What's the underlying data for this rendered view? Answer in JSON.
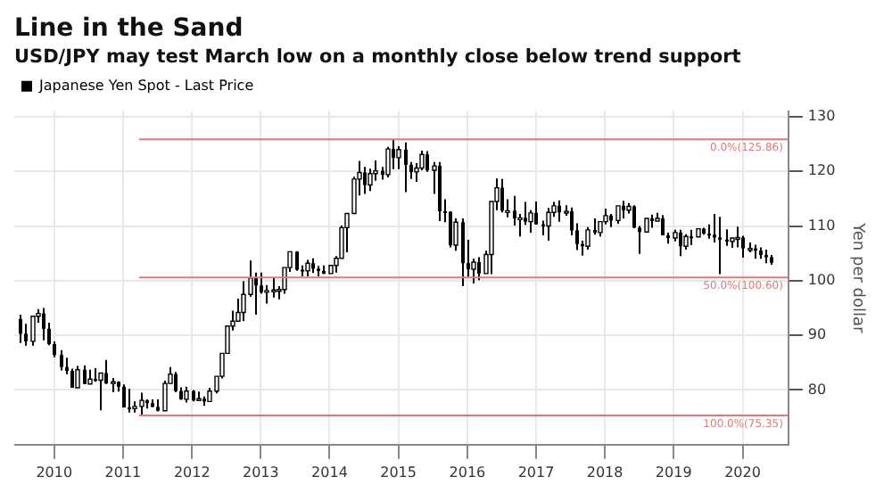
{
  "chart_data": {
    "type": "candlestick",
    "title": "Line in the Sand",
    "subtitle": "USD/JPY may test March low on a monthly close below trend support",
    "ylabel": "Yen per dollar",
    "legend": "top left",
    "grid": true,
    "xlim": [
      "2009-12",
      "2021-03"
    ],
    "xticks": [
      {
        "value": "2010-07",
        "label": "2010"
      },
      {
        "value": "2011-07",
        "label": "2011"
      },
      {
        "value": "2012-07",
        "label": "2012"
      },
      {
        "value": "2013-07",
        "label": "2013"
      },
      {
        "value": "2014-07",
        "label": "2014"
      },
      {
        "value": "2015-07",
        "label": "2015"
      },
      {
        "value": "2016-07",
        "label": "2016"
      },
      {
        "value": "2017-07",
        "label": "2017"
      },
      {
        "value": "2018-07",
        "label": "2018"
      },
      {
        "value": "2019-07",
        "label": "2019"
      },
      {
        "value": "2020-07",
        "label": "2020"
      }
    ],
    "ylim": [
      70,
      131
    ],
    "yticks": [
      80,
      90,
      100,
      110,
      120,
      130
    ],
    "ref_lines": [
      {
        "axis": "y",
        "value": 125.86,
        "label": "0.0%(125.86)",
        "color": "#e07a7a"
      },
      {
        "axis": "y",
        "value": 100.6,
        "label": "50.0%(100.60)",
        "color": "#e07a7a"
      },
      {
        "axis": "y",
        "value": 75.35,
        "label": "100.0%(75.35)",
        "color": "#e07a7a"
      }
    ],
    "x": [
      "2010-01",
      "2010-02",
      "2010-03",
      "2010-04",
      "2010-05",
      "2010-06",
      "2010-07",
      "2010-08",
      "2010-09",
      "2010-10",
      "2010-11",
      "2010-12",
      "2011-01",
      "2011-02",
      "2011-03",
      "2011-04",
      "2011-05",
      "2011-06",
      "2011-07",
      "2011-08",
      "2011-09",
      "2011-10",
      "2011-11",
      "2011-12",
      "2012-01",
      "2012-02",
      "2012-03",
      "2012-04",
      "2012-05",
      "2012-06",
      "2012-07",
      "2012-08",
      "2012-09",
      "2012-10",
      "2012-11",
      "2012-12",
      "2013-01",
      "2013-02",
      "2013-03",
      "2013-04",
      "2013-05",
      "2013-06",
      "2013-07",
      "2013-08",
      "2013-09",
      "2013-10",
      "2013-11",
      "2013-12",
      "2014-01",
      "2014-02",
      "2014-03",
      "2014-04",
      "2014-05",
      "2014-06",
      "2014-07",
      "2014-08",
      "2014-09",
      "2014-10",
      "2014-11",
      "2014-12",
      "2015-01",
      "2015-02",
      "2015-03",
      "2015-04",
      "2015-05",
      "2015-06",
      "2015-07",
      "2015-08",
      "2015-09",
      "2015-10",
      "2015-11",
      "2015-12",
      "2016-01",
      "2016-02",
      "2016-03",
      "2016-04",
      "2016-05",
      "2016-06",
      "2016-07",
      "2016-08",
      "2016-09",
      "2016-10",
      "2016-11",
      "2016-12",
      "2017-01",
      "2017-02",
      "2017-03",
      "2017-04",
      "2017-05",
      "2017-06",
      "2017-07",
      "2017-08",
      "2017-09",
      "2017-10",
      "2017-11",
      "2017-12",
      "2018-01",
      "2018-02",
      "2018-03",
      "2018-04",
      "2018-05",
      "2018-06",
      "2018-07",
      "2018-08",
      "2018-09",
      "2018-10",
      "2018-11",
      "2018-12",
      "2019-01",
      "2019-02",
      "2019-03",
      "2019-04",
      "2019-05",
      "2019-06",
      "2019-07",
      "2019-08",
      "2019-09",
      "2019-10",
      "2019-11",
      "2019-12",
      "2020-01",
      "2020-02",
      "2020-03",
      "2020-04",
      "2020-05",
      "2020-06",
      "2020-07",
      "2020-08",
      "2020-09",
      "2020-10",
      "2020-11",
      "2020-12"
    ],
    "series": [
      {
        "name": "Japanese Yen Spot - Last Price",
        "color": "#000000",
        "ohlc": [
          [
            93.0,
            93.8,
            88.6,
            90.3
          ],
          [
            90.3,
            92.1,
            88.1,
            88.9
          ],
          [
            88.9,
            93.8,
            88.1,
            93.5
          ],
          [
            93.5,
            94.8,
            92.3,
            94.0
          ],
          [
            94.0,
            95.0,
            89.1,
            91.2
          ],
          [
            91.2,
            92.3,
            88.2,
            88.4
          ],
          [
            88.4,
            88.9,
            86.0,
            86.4
          ],
          [
            86.4,
            87.3,
            83.6,
            84.2
          ],
          [
            84.2,
            85.9,
            82.9,
            83.5
          ],
          [
            83.5,
            83.9,
            80.4,
            80.4
          ],
          [
            80.4,
            84.4,
            80.2,
            83.7
          ],
          [
            83.7,
            84.5,
            81.1,
            81.1
          ],
          [
            81.1,
            83.7,
            81.0,
            82.0
          ],
          [
            82.0,
            84.0,
            81.5,
            81.8
          ],
          [
            81.8,
            83.3,
            76.3,
            83.1
          ],
          [
            83.1,
            85.5,
            81.1,
            81.2
          ],
          [
            81.2,
            82.2,
            79.6,
            81.5
          ],
          [
            81.5,
            81.6,
            79.7,
            80.6
          ],
          [
            80.6,
            81.0,
            76.8,
            76.8
          ],
          [
            76.8,
            80.2,
            75.9,
            76.6
          ],
          [
            76.6,
            77.9,
            75.9,
            77.0
          ],
          [
            77.0,
            79.5,
            75.35,
            78.1
          ],
          [
            78.1,
            78.3,
            76.6,
            77.6
          ],
          [
            77.6,
            78.3,
            76.9,
            76.9
          ],
          [
            76.9,
            78.3,
            76.1,
            76.2
          ],
          [
            76.2,
            81.7,
            76.1,
            81.2
          ],
          [
            81.2,
            84.2,
            80.9,
            82.9
          ],
          [
            82.9,
            83.3,
            79.6,
            79.8
          ],
          [
            79.8,
            80.5,
            78.2,
            78.3
          ],
          [
            78.3,
            80.6,
            77.7,
            79.8
          ],
          [
            79.8,
            80.0,
            77.9,
            78.1
          ],
          [
            78.1,
            79.7,
            77.8,
            78.4
          ],
          [
            78.4,
            78.8,
            77.1,
            77.9
          ],
          [
            77.9,
            80.4,
            77.9,
            79.8
          ],
          [
            79.8,
            82.8,
            79.4,
            82.5
          ],
          [
            82.5,
            86.7,
            82.1,
            86.7
          ],
          [
            86.7,
            91.7,
            86.5,
            91.7
          ],
          [
            91.7,
            94.5,
            90.9,
            92.6
          ],
          [
            92.6,
            96.7,
            92.4,
            94.2
          ],
          [
            94.2,
            99.9,
            92.6,
            97.5
          ],
          [
            97.5,
            103.7,
            97.1,
            100.5
          ],
          [
            100.5,
            101.5,
            93.8,
            99.1
          ],
          [
            99.1,
            101.5,
            97.6,
            97.9
          ],
          [
            97.9,
            99.2,
            95.8,
            98.2
          ],
          [
            98.2,
            100.6,
            96.9,
            98.3
          ],
          [
            98.3,
            99.0,
            96.6,
            98.4
          ],
          [
            98.4,
            102.6,
            97.6,
            102.4
          ],
          [
            102.4,
            105.4,
            101.6,
            105.3
          ],
          [
            105.3,
            105.4,
            101.8,
            102.0
          ],
          [
            102.0,
            102.8,
            100.8,
            101.8
          ],
          [
            101.8,
            103.8,
            100.8,
            103.2
          ],
          [
            103.2,
            104.1,
            101.4,
            102.2
          ],
          [
            102.2,
            102.7,
            100.8,
            101.8
          ],
          [
            101.8,
            102.8,
            101.2,
            101.3
          ],
          [
            101.3,
            103.1,
            101.1,
            102.8
          ],
          [
            102.8,
            104.5,
            101.5,
            104.1
          ],
          [
            104.1,
            110.1,
            104.0,
            109.7
          ],
          [
            109.7,
            112.5,
            105.2,
            112.3
          ],
          [
            112.3,
            119.0,
            112.3,
            118.6
          ],
          [
            118.6,
            121.9,
            115.6,
            119.8
          ],
          [
            119.8,
            120.8,
            115.9,
            117.5
          ],
          [
            117.5,
            120.5,
            116.4,
            119.6
          ],
          [
            119.6,
            122.0,
            118.3,
            120.1
          ],
          [
            120.1,
            120.8,
            118.5,
            119.4
          ],
          [
            119.4,
            124.5,
            118.9,
            124.1
          ],
          [
            124.1,
            125.86,
            120.4,
            122.5
          ],
          [
            122.5,
            124.6,
            120.4,
            124.0
          ],
          [
            124.0,
            125.3,
            116.2,
            121.2
          ],
          [
            121.2,
            121.7,
            118.6,
            119.9
          ],
          [
            119.9,
            121.5,
            118.1,
            120.6
          ],
          [
            120.6,
            123.8,
            120.2,
            123.1
          ],
          [
            123.1,
            123.7,
            119.9,
            120.2
          ],
          [
            120.2,
            121.7,
            115.9,
            121.0
          ],
          [
            121.0,
            121.7,
            110.9,
            112.7
          ],
          [
            112.7,
            114.9,
            110.7,
            112.6
          ],
          [
            112.6,
            112.7,
            106.1,
            106.5
          ],
          [
            106.5,
            111.4,
            105.5,
            110.7
          ],
          [
            110.7,
            111.4,
            99.0,
            103.2
          ],
          [
            103.2,
            107.5,
            100.7,
            102.1
          ],
          [
            102.1,
            104.0,
            99.5,
            103.4
          ],
          [
            103.4,
            104.3,
            100.1,
            101.3
          ],
          [
            101.3,
            105.5,
            101.2,
            104.8
          ],
          [
            104.8,
            114.8,
            101.2,
            114.5
          ],
          [
            114.5,
            118.7,
            112.9,
            117.0
          ],
          [
            117.0,
            118.6,
            112.5,
            112.8
          ],
          [
            112.8,
            114.9,
            111.6,
            112.8
          ],
          [
            112.8,
            115.5,
            110.1,
            111.4
          ],
          [
            111.4,
            112.2,
            108.1,
            111.5
          ],
          [
            111.5,
            114.4,
            110.2,
            110.8
          ],
          [
            110.8,
            112.9,
            108.8,
            112.4
          ],
          [
            112.4,
            114.5,
            110.3,
            110.3
          ],
          [
            110.3,
            111.0,
            108.3,
            110.0
          ],
          [
            110.0,
            113.3,
            107.3,
            112.5
          ],
          [
            112.5,
            114.4,
            111.7,
            113.7
          ],
          [
            113.7,
            114.7,
            110.8,
            112.5
          ],
          [
            112.5,
            113.8,
            111.9,
            112.7
          ],
          [
            112.7,
            113.4,
            108.3,
            109.2
          ],
          [
            109.2,
            110.5,
            105.6,
            106.7
          ],
          [
            106.7,
            107.3,
            104.6,
            106.3
          ],
          [
            106.3,
            109.8,
            105.7,
            109.3
          ],
          [
            109.3,
            111.4,
            108.4,
            108.8
          ],
          [
            108.8,
            110.9,
            108.1,
            110.8
          ],
          [
            110.8,
            113.2,
            110.3,
            111.9
          ],
          [
            111.9,
            112.2,
            109.8,
            111.0
          ],
          [
            111.0,
            113.7,
            110.4,
            113.7
          ],
          [
            113.7,
            114.6,
            111.4,
            112.9
          ],
          [
            112.9,
            114.2,
            112.3,
            113.6
          ],
          [
            113.6,
            113.8,
            109.6,
            109.7
          ],
          [
            109.7,
            110.0,
            104.9,
            108.9
          ],
          [
            108.9,
            111.5,
            108.7,
            111.4
          ],
          [
            111.4,
            112.1,
            109.7,
            110.9
          ],
          [
            110.9,
            112.4,
            110.8,
            111.4
          ],
          [
            111.4,
            112.0,
            108.3,
            108.3
          ],
          [
            108.3,
            108.8,
            106.8,
            107.8
          ],
          [
            107.8,
            109.3,
            107.2,
            108.8
          ],
          [
            108.8,
            109.3,
            104.5,
            106.3
          ],
          [
            106.3,
            108.5,
            105.7,
            108.1
          ],
          [
            108.1,
            109.3,
            106.5,
            108.0
          ],
          [
            108.0,
            109.7,
            107.9,
            109.5
          ],
          [
            109.5,
            109.7,
            108.4,
            108.6
          ],
          [
            108.6,
            110.3,
            107.7,
            108.4
          ],
          [
            108.4,
            112.2,
            107.0,
            107.9
          ],
          [
            107.9,
            111.7,
            101.2,
            107.5
          ],
          [
            107.5,
            109.4,
            106.4,
            107.2
          ],
          [
            107.2,
            108.1,
            106.0,
            107.8
          ],
          [
            107.8,
            109.9,
            106.1,
            107.9
          ],
          [
            107.9,
            108.2,
            104.2,
            105.9
          ],
          [
            105.9,
            107.0,
            105.2,
            105.9
          ],
          [
            105.9,
            106.6,
            104.0,
            105.5
          ],
          [
            105.5,
            106.1,
            104.0,
            104.7
          ],
          [
            104.7,
            105.7,
            103.2,
            104.3
          ],
          [
            104.3,
            104.7,
            102.9,
            103.3
          ]
        ]
      }
    ]
  }
}
